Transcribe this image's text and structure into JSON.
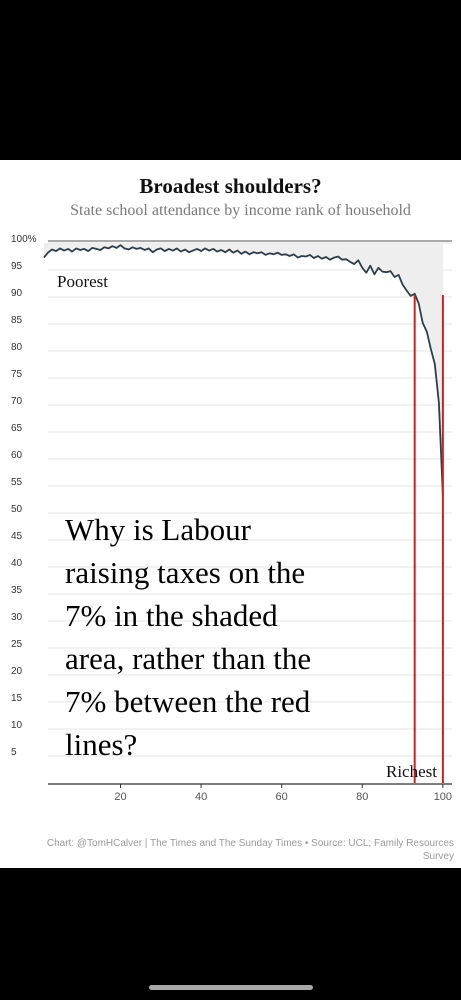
{
  "chart_data": {
    "type": "line",
    "title": "Broadest shoulders?",
    "subtitle": "State school attendance by income rank of household",
    "xlabel": "",
    "ylabel": "",
    "xlim": [
      1,
      100
    ],
    "ylim": [
      0,
      100
    ],
    "x_ticks": [
      20,
      40,
      60,
      80,
      100
    ],
    "y_ticks": [
      {
        "value": 100,
        "label": "100%"
      },
      {
        "value": 95,
        "label": "95"
      },
      {
        "value": 90,
        "label": "90"
      },
      {
        "value": 85,
        "label": "85"
      },
      {
        "value": 80,
        "label": "80"
      },
      {
        "value": 75,
        "label": "75"
      },
      {
        "value": 70,
        "label": "70"
      },
      {
        "value": 65,
        "label": "65"
      },
      {
        "value": 60,
        "label": "60"
      },
      {
        "value": 55,
        "label": "55"
      },
      {
        "value": 50,
        "label": "50"
      },
      {
        "value": 45,
        "label": "45"
      },
      {
        "value": 40,
        "label": "40"
      },
      {
        "value": 35,
        "label": "35"
      },
      {
        "value": 30,
        "label": "30"
      },
      {
        "value": 25,
        "label": "25"
      },
      {
        "value": 20,
        "label": "20"
      },
      {
        "value": 15,
        "label": "15"
      },
      {
        "value": 10,
        "label": "10"
      },
      {
        "value": 5,
        "label": "5"
      }
    ],
    "grid": true,
    "shaded_area": "between the line and 100%",
    "reference_lines_x": [
      93,
      100
    ],
    "reference_line_color": "#cc2222",
    "line_color": "#2c3e4c",
    "shade_color": "#eeeeee",
    "x": [
      1,
      2,
      3,
      4,
      5,
      6,
      7,
      8,
      9,
      10,
      11,
      12,
      13,
      14,
      15,
      16,
      17,
      18,
      19,
      20,
      21,
      22,
      23,
      24,
      25,
      26,
      27,
      28,
      29,
      30,
      31,
      32,
      33,
      34,
      35,
      36,
      37,
      38,
      39,
      40,
      41,
      42,
      43,
      44,
      45,
      46,
      47,
      48,
      49,
      50,
      51,
      52,
      53,
      54,
      55,
      56,
      57,
      58,
      59,
      60,
      61,
      62,
      63,
      64,
      65,
      66,
      67,
      68,
      69,
      70,
      71,
      72,
      73,
      74,
      75,
      76,
      77,
      78,
      79,
      80,
      81,
      82,
      83,
      84,
      85,
      86,
      87,
      88,
      89,
      90,
      91,
      92,
      93,
      94,
      95,
      96,
      97,
      98,
      99,
      100
    ],
    "values": [
      97.3,
      98.2,
      98.8,
      98.5,
      99.0,
      98.6,
      98.9,
      98.4,
      99.0,
      98.7,
      98.9,
      98.5,
      99.1,
      98.9,
      98.7,
      99.2,
      99.0,
      99.4,
      99.1,
      99.6,
      99.0,
      98.8,
      99.2,
      98.9,
      99.1,
      98.7,
      99.0,
      98.3,
      98.8,
      99.0,
      98.5,
      98.9,
      98.6,
      99.0,
      98.4,
      98.8,
      98.3,
      98.6,
      98.9,
      98.5,
      99.0,
      98.6,
      98.9,
      98.4,
      98.7,
      98.3,
      98.8,
      98.2,
      98.6,
      98.0,
      98.4,
      97.9,
      98.3,
      98.1,
      98.3,
      97.8,
      98.1,
      97.9,
      98.2,
      97.8,
      97.9,
      97.6,
      97.9,
      97.3,
      97.6,
      97.5,
      97.8,
      97.2,
      97.6,
      97.1,
      97.4,
      96.9,
      97.3,
      97.5,
      96.9,
      97.0,
      96.5,
      96.1,
      96.8,
      95.4,
      94.5,
      95.8,
      94.2,
      95.4,
      94.7,
      94.6,
      94.8,
      93.7,
      94.1,
      92.3,
      91.2,
      90.2,
      90.6,
      88.8,
      85.2,
      83.6,
      80.4,
      77.6,
      70.4,
      53.0
    ],
    "annotations": [
      {
        "text": "Poorest"
      },
      {
        "text": "Richest"
      }
    ],
    "overlay_text": [
      "Why is Labour",
      "raising taxes on the",
      "7% in the shaded",
      "area, rather than the",
      "7% between the red",
      "lines?"
    ],
    "footer": [
      "Chart: @TomHCalver | The Times and The Sunday Times • Source: UCL; Family Resources",
      "Survey"
    ]
  }
}
